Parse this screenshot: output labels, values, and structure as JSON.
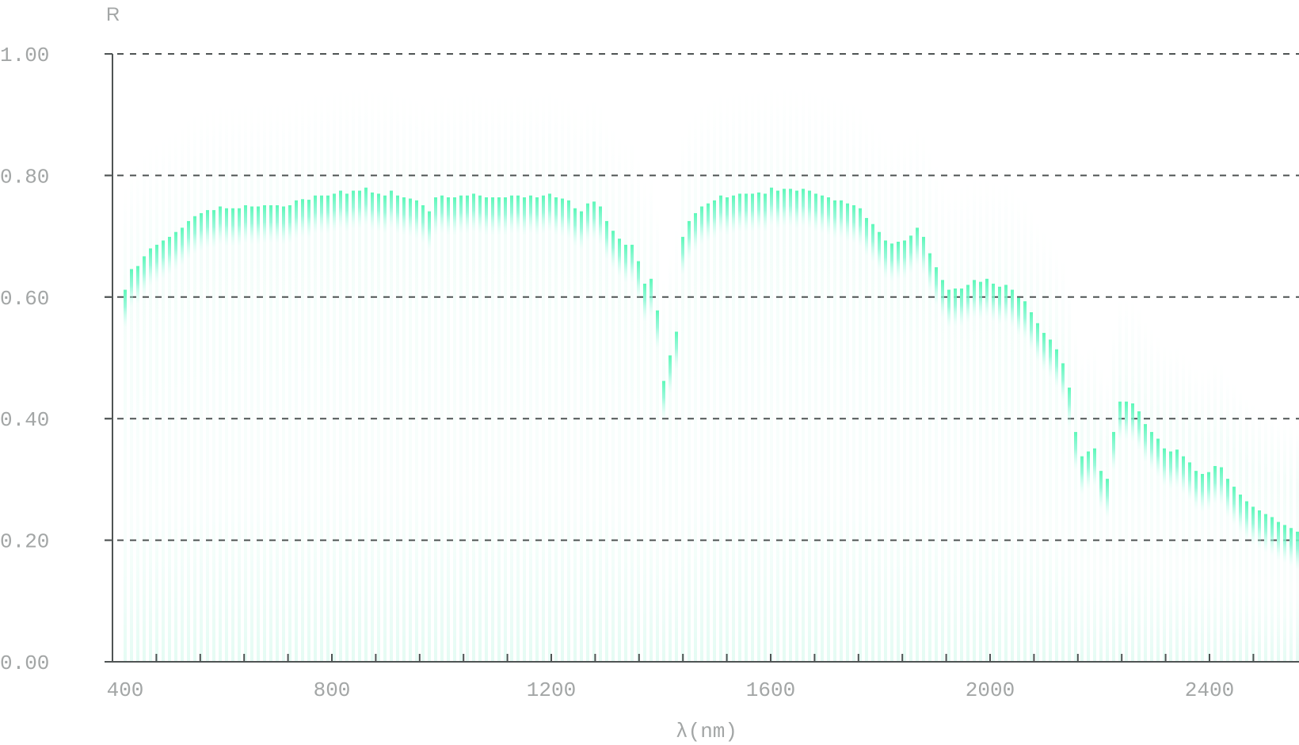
{
  "chart_data": {
    "type": "bar",
    "title": "",
    "xlabel": "λ(nm)",
    "ylabel": "R",
    "xlim": [
      400,
      2550
    ],
    "ylim": [
      0,
      1.0
    ],
    "grid": true,
    "grid_style": "dashed horizontal",
    "legend": null,
    "y_ticks": [
      "0.00",
      "0.20",
      "0.40",
      "0.60",
      "0.80",
      "1.00"
    ],
    "y_tick_values": [
      0.0,
      0.2,
      0.4,
      0.6,
      0.8,
      1.0
    ],
    "x_ticks": [
      "400",
      "800",
      "1200",
      "1600",
      "2000",
      "2400"
    ],
    "x_tick_values": [
      400,
      800,
      1200,
      1600,
      2000,
      2400
    ],
    "x_minor_tick_step": 80,
    "bar_color": "#5cf8b8",
    "x_start": 422,
    "x_step": 11.55,
    "values": [
      0.612,
      0.646,
      0.651,
      0.667,
      0.68,
      0.686,
      0.693,
      0.699,
      0.707,
      0.714,
      0.725,
      0.733,
      0.738,
      0.743,
      0.743,
      0.749,
      0.746,
      0.746,
      0.746,
      0.751,
      0.749,
      0.749,
      0.751,
      0.751,
      0.751,
      0.749,
      0.751,
      0.759,
      0.761,
      0.76,
      0.767,
      0.767,
      0.767,
      0.77,
      0.775,
      0.77,
      0.775,
      0.775,
      0.78,
      0.772,
      0.77,
      0.767,
      0.775,
      0.767,
      0.764,
      0.762,
      0.759,
      0.751,
      0.741,
      0.764,
      0.767,
      0.764,
      0.764,
      0.767,
      0.767,
      0.77,
      0.767,
      0.764,
      0.764,
      0.764,
      0.764,
      0.767,
      0.767,
      0.764,
      0.767,
      0.764,
      0.767,
      0.77,
      0.764,
      0.762,
      0.759,
      0.746,
      0.741,
      0.754,
      0.757,
      0.749,
      0.725,
      0.709,
      0.696,
      0.686,
      0.686,
      0.659,
      0.622,
      0.63,
      0.578,
      0.462,
      0.504,
      0.543,
      0.699,
      0.725,
      0.738,
      0.749,
      0.754,
      0.759,
      0.767,
      0.764,
      0.767,
      0.77,
      0.77,
      0.77,
      0.772,
      0.77,
      0.78,
      0.775,
      0.778,
      0.778,
      0.775,
      0.778,
      0.775,
      0.77,
      0.767,
      0.764,
      0.759,
      0.759,
      0.754,
      0.751,
      0.746,
      0.73,
      0.72,
      0.707,
      0.693,
      0.688,
      0.691,
      0.693,
      0.701,
      0.714,
      0.699,
      0.672,
      0.649,
      0.628,
      0.612,
      0.614,
      0.614,
      0.62,
      0.628,
      0.625,
      0.63,
      0.622,
      0.617,
      0.62,
      0.612,
      0.599,
      0.593,
      0.575,
      0.557,
      0.541,
      0.53,
      0.514,
      0.491,
      0.451,
      0.378,
      0.338,
      0.346,
      0.351,
      0.314,
      0.301,
      0.378,
      0.428,
      0.428,
      0.425,
      0.412,
      0.391,
      0.378,
      0.367,
      0.351,
      0.346,
      0.349,
      0.338,
      0.328,
      0.314,
      0.309,
      0.312,
      0.322,
      0.32,
      0.301,
      0.288,
      0.275,
      0.264,
      0.255,
      0.249,
      0.243,
      0.238,
      0.23,
      0.225,
      0.22,
      0.214
    ]
  },
  "labels": {
    "y_axis_title": "R",
    "x_axis_title": "λ(nm)"
  }
}
